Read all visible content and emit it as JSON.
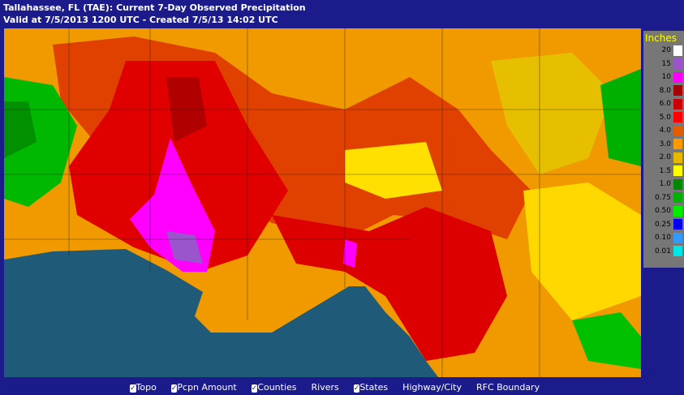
{
  "header": {
    "line1": "Tallahassee, FL (TAE): Current 7-Day Observed Precipitation",
    "line2": "Valid at 7/5/2013 1200 UTC - Created 7/5/13 14:02 UTC"
  },
  "legend": {
    "title": "Inches",
    "items": [
      {
        "label": "20",
        "color": "#ffffff"
      },
      {
        "label": "15",
        "color": "#9a55cc"
      },
      {
        "label": "10",
        "color": "#ff00ff"
      },
      {
        "label": "8.0",
        "color": "#a80000"
      },
      {
        "label": "6.0",
        "color": "#cc0000"
      },
      {
        "label": "5.0",
        "color": "#ff0000"
      },
      {
        "label": "4.0",
        "color": "#e65c00"
      },
      {
        "label": "3.0",
        "color": "#ff9900"
      },
      {
        "label": "2.0",
        "color": "#e6b800"
      },
      {
        "label": "1.5",
        "color": "#ffff00"
      },
      {
        "label": "1.0",
        "color": "#008800"
      },
      {
        "label": "0.75",
        "color": "#00b000"
      },
      {
        "label": "0.50",
        "color": "#00ee00"
      },
      {
        "label": "0.25",
        "color": "#0000ee"
      },
      {
        "label": "0.10",
        "color": "#3399ff"
      },
      {
        "label": "0.01",
        "color": "#00e5e5"
      }
    ]
  },
  "layers": [
    {
      "label": "Topo",
      "checked": true
    },
    {
      "label": "Pcpn Amount",
      "checked": true
    },
    {
      "label": "Counties",
      "checked": true
    },
    {
      "label": "Rivers",
      "checked": false
    },
    {
      "label": "States",
      "checked": true
    },
    {
      "label": "Highway/City",
      "checked": false
    },
    {
      "label": "RFC Boundary",
      "checked": false
    }
  ]
}
